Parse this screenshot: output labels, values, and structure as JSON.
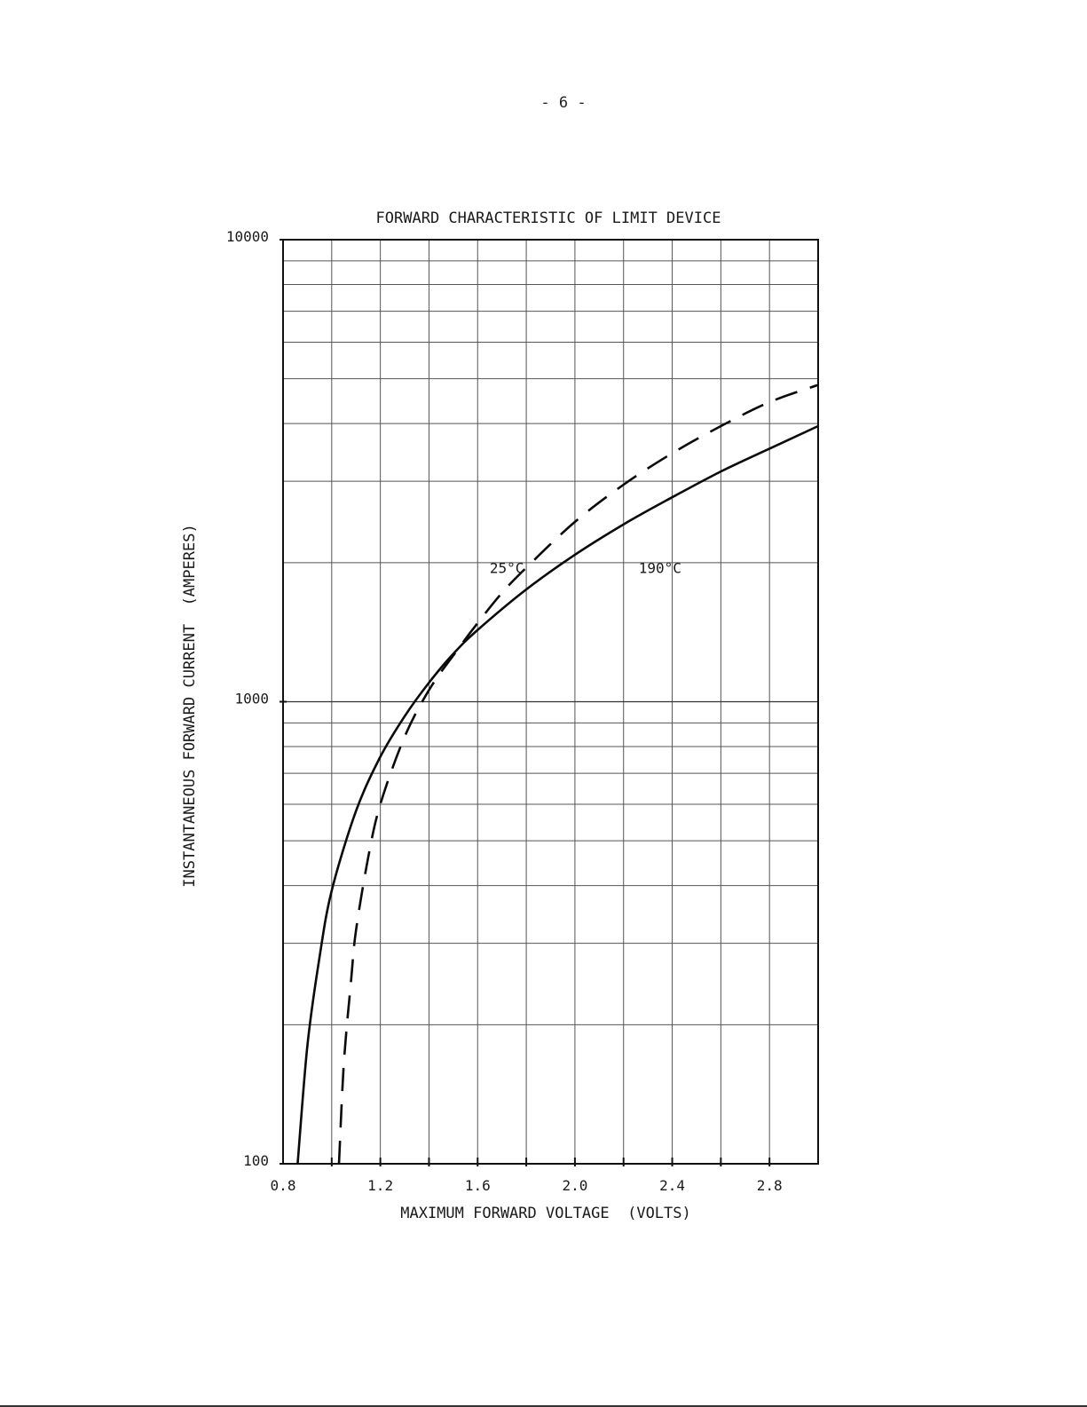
{
  "page": {
    "page_number": "- 6 -"
  },
  "chart_data": {
    "type": "line",
    "title": "FORWARD CHARACTERISTIC OF LIMIT DEVICE",
    "xlabel": "MAXIMUM FORWARD VOLTAGE  (VOLTS)",
    "ylabel": "INSTANTANEOUS FORWARD CURRENT  (AMPERES)",
    "xlim": [
      0.8,
      3.0
    ],
    "ylim": [
      100,
      10000
    ],
    "yscale": "log",
    "grid": true,
    "x_tick_labels": [
      "0.8",
      "1.2",
      "1.6",
      "2.0",
      "2.4",
      "2.8"
    ],
    "y_tick_labels": [
      "100",
      "1000",
      "10000"
    ],
    "series": [
      {
        "name": "190°C",
        "style": "solid",
        "x": [
          0.86,
          0.9,
          0.95,
          1.0,
          1.1,
          1.2,
          1.3,
          1.4,
          1.5,
          1.6,
          1.8,
          2.0,
          2.2,
          2.4,
          2.6,
          2.8,
          3.0
        ],
        "y": [
          100,
          180,
          280,
          390,
          580,
          760,
          930,
          1100,
          1270,
          1430,
          1750,
          2080,
          2420,
          2770,
          3150,
          3530,
          3950
        ]
      },
      {
        "name": "25°C",
        "style": "dashed",
        "x": [
          1.03,
          1.05,
          1.08,
          1.1,
          1.15,
          1.2,
          1.3,
          1.4,
          1.5,
          1.6,
          1.7,
          1.8,
          2.0,
          2.2,
          2.4,
          2.6,
          2.8,
          3.0
        ],
        "y": [
          100,
          165,
          250,
          320,
          460,
          600,
          840,
          1060,
          1260,
          1480,
          1720,
          1950,
          2450,
          2950,
          3450,
          3950,
          4450,
          4850
        ]
      }
    ],
    "annotations": [
      {
        "text": "25°C",
        "near_series": "25°C"
      },
      {
        "text": "190°C",
        "near_series": "190°C"
      }
    ]
  }
}
